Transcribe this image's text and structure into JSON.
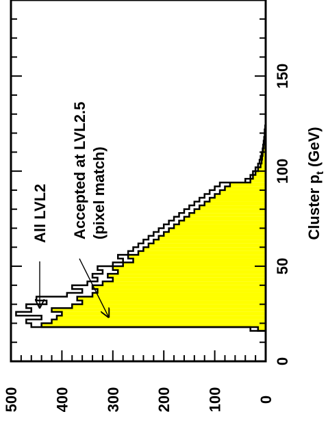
{
  "chart_data": {
    "type": "histogram",
    "orientation": "rotated-90-ccw",
    "xlabel": "Cluster p",
    "xlabel_subscript": "t",
    "xlabel_unit": " (GeV)",
    "ylabel": "",
    "xlim": [
      0,
      190
    ],
    "ylim": [
      0,
      500
    ],
    "x_ticks": [
      "0",
      "50",
      "100",
      "150"
    ],
    "y_ticks": [
      "0",
      "100",
      "200",
      "300",
      "400",
      "500"
    ],
    "bin_width": 2,
    "bin_start": 16,
    "series": [
      {
        "name": "All LVL2",
        "style": "outline",
        "color": "#000000",
        "values": [
          30,
          460,
          470,
          440,
          490,
          460,
          470,
          430,
          450,
          390,
          360,
          380,
          350,
          330,
          340,
          320,
          330,
          300,
          280,
          290,
          270,
          260,
          250,
          240,
          230,
          220,
          210,
          200,
          190,
          180,
          170,
          160,
          150,
          140,
          130,
          120,
          110,
          100,
          90,
          40,
          30,
          25,
          20,
          15,
          12,
          10,
          8,
          6,
          5,
          4,
          3,
          2,
          2,
          1
        ]
      },
      {
        "name": "Accepted at LVL2.5 (pixel match)",
        "style": "filled",
        "color": "#ffff00",
        "values": [
          15,
          440,
          420,
          410,
          400,
          420,
          380,
          360,
          370,
          340,
          330,
          340,
          320,
          300,
          310,
          290,
          300,
          280,
          260,
          270,
          250,
          240,
          230,
          220,
          210,
          200,
          190,
          180,
          170,
          160,
          150,
          140,
          130,
          120,
          110,
          100,
          90,
          80,
          70,
          30,
          25,
          20,
          15,
          10,
          8,
          7,
          6,
          5,
          4,
          3,
          2,
          1,
          1,
          0
        ]
      }
    ],
    "annotations": [
      {
        "text": "All LVL2",
        "points_to_series": 0
      },
      {
        "text": "Accepted at LVL2.5",
        "points_to_series": 1
      },
      {
        "text": "(pixel match)",
        "points_to_series": 1
      }
    ]
  }
}
